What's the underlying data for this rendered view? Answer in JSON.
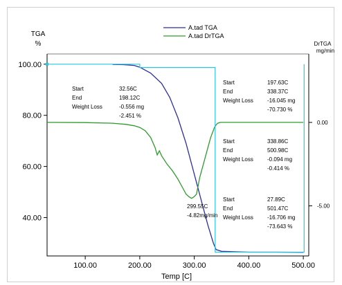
{
  "chart_data": {
    "type": "line",
    "xlabel": "Temp [C]",
    "ylabel": "TGA",
    "ylabel_unit": "%",
    "y2label": "DrTGA",
    "y2label_unit": "mg/min",
    "xlim": [
      30,
      510
    ],
    "ylim": [
      25,
      104
    ],
    "y2lim": [
      -8.0,
      4.1
    ],
    "x_ticks": [
      "100.00",
      "200.00",
      "300.00",
      "400.00",
      "500.00"
    ],
    "x_tick_values": [
      100,
      200,
      300,
      400,
      500
    ],
    "y_ticks": [
      "100.00",
      "80.00",
      "60.00",
      "40.00"
    ],
    "y_tick_values": [
      100,
      80,
      60,
      40
    ],
    "y2_ticks": [
      "0.00",
      "-5.00"
    ],
    "y2_tick_values": [
      0,
      -5
    ],
    "grid": false,
    "legend_position": "top-center",
    "series": [
      {
        "name": "A.tad TGA",
        "axis": "left",
        "color": "#2b2f9e",
        "x": [
          150,
          170,
          190,
          200,
          220,
          240,
          255,
          270,
          285,
          300,
          315,
          325,
          335,
          340,
          350,
          400,
          450,
          500
        ],
        "y": [
          99.9,
          99.8,
          99.5,
          98.8,
          96.5,
          92.5,
          87.0,
          79.0,
          69.0,
          57.0,
          45.0,
          37.0,
          30.0,
          27.5,
          26.8,
          26.5,
          26.5,
          26.4
        ]
      },
      {
        "name": "A.tad DrTGA",
        "axis": "right",
        "color": "#2e9a2e",
        "x": [
          30,
          100,
          150,
          175,
          190,
          200,
          210,
          220,
          228,
          232,
          236,
          240,
          250,
          260,
          270,
          280,
          285,
          290,
          295,
          300,
          304,
          310,
          320,
          330,
          337,
          340,
          343,
          348,
          360,
          420,
          500
        ],
        "y": [
          0.0,
          -0.01,
          -0.05,
          -0.12,
          -0.2,
          -0.3,
          -0.5,
          -0.9,
          -1.5,
          -1.95,
          -1.7,
          -2.0,
          -2.5,
          -2.9,
          -3.4,
          -4.0,
          -4.3,
          -4.45,
          -4.55,
          -4.45,
          -4.3,
          -3.3,
          -2.1,
          -0.9,
          -0.3,
          -0.15,
          -0.05,
          0.0,
          0.0,
          0.0,
          0.0
        ]
      },
      {
        "name": "",
        "axis": "left",
        "color": "#29c7de",
        "x": [
          30,
          200,
          200,
          338.37,
          338.37,
          501.47,
          501.47
        ],
        "y": [
          100.0,
          100.0,
          98.7,
          98.7,
          26.5,
          26.5,
          100.0
        ]
      }
    ],
    "annotations": [
      {
        "id": "ann1",
        "rows": [
          [
            "Start",
            "32.56C"
          ],
          [
            "End",
            "198.12C"
          ],
          [
            "Weight Loss",
            "-0.556 mg"
          ],
          [
            "",
            "-2.451 %"
          ]
        ]
      },
      {
        "id": "ann2",
        "rows": [
          [
            "Start",
            "197.63C"
          ],
          [
            "End",
            "338.37C"
          ],
          [
            "Weight Loss",
            "-16.045 mg"
          ],
          [
            "",
            "-70.730 %"
          ]
        ]
      },
      {
        "id": "ann3",
        "rows": [
          [
            "Start",
            "338.86C"
          ],
          [
            "End",
            "500.98C"
          ],
          [
            "Weight Loss",
            "-0.094 mg"
          ],
          [
            "",
            "-0.414 %"
          ]
        ]
      },
      {
        "id": "ann4",
        "rows": [
          [
            "Start",
            "27.89C"
          ],
          [
            "End",
            "501.47C"
          ],
          [
            "Weight Loss",
            "-16.706 mg"
          ],
          [
            "",
            "-73.643 %"
          ]
        ]
      }
    ],
    "peak_label": {
      "x": 299.55,
      "y2": -4.82,
      "line1": "299.55C",
      "line2": "-4.82mg/min"
    }
  }
}
